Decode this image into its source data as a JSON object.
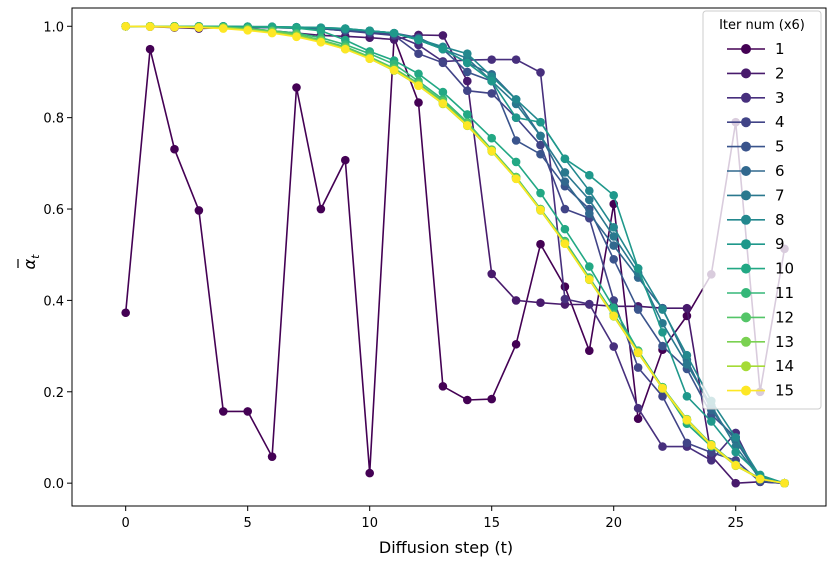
{
  "chart_data": {
    "type": "line",
    "title": "",
    "xlabel": "Diffusion step (t)",
    "ylabel": "ᾱ_t",
    "ylabel_base": "α",
    "ylabel_sub": "t",
    "xlim": [
      -2.2,
      28.7
    ],
    "ylim": [
      -0.05,
      1.04
    ],
    "xticks": [
      0,
      5,
      10,
      15,
      20,
      25
    ],
    "yticks": [
      0.0,
      0.2,
      0.4,
      0.6,
      0.8,
      1.0
    ],
    "legend_title": "Iter num (x6)",
    "legend_position": "top-right",
    "x": [
      0,
      1,
      2,
      3,
      4,
      5,
      6,
      7,
      8,
      9,
      10,
      11,
      12,
      13,
      14,
      15,
      16,
      17,
      18,
      19,
      20,
      21,
      22,
      23,
      24,
      25,
      26,
      27
    ],
    "series": [
      {
        "name": "1",
        "color": "#440154",
        "values": [
          0.373,
          0.95,
          0.731,
          0.597,
          0.157,
          0.157,
          0.058,
          0.866,
          0.6,
          0.707,
          0.022,
          0.975,
          0.833,
          0.212,
          0.182,
          0.184,
          0.304,
          0.523,
          0.43,
          0.29,
          0.611,
          0.141,
          0.292,
          0.366,
          0.457,
          0.79,
          0.2,
          0.513
        ]
      },
      {
        "name": "2",
        "color": "#481a6c",
        "values": [
          1.0,
          0.999,
          0.997,
          0.995,
          0.997,
          0.994,
          0.99,
          0.985,
          0.98,
          0.978,
          0.975,
          0.971,
          0.981,
          0.98,
          0.88,
          0.458,
          0.4,
          0.395,
          0.391,
          0.391,
          0.387,
          0.387,
          0.383,
          0.383,
          0.06,
          0.0,
          0.003,
          0.0
        ]
      },
      {
        "name": "3",
        "color": "#472f7d",
        "values": [
          1.0,
          1.0,
          0.999,
          0.998,
          0.998,
          0.997,
          0.997,
          0.996,
          0.995,
          0.99,
          0.988,
          0.981,
          0.959,
          0.923,
          0.926,
          0.927,
          0.927,
          0.899,
          0.403,
          0.392,
          0.299,
          0.164,
          0.08,
          0.08,
          0.05,
          0.11,
          0.003,
          0.0
        ]
      },
      {
        "name": "4",
        "color": "#414487",
        "values": [
          1.0,
          1.0,
          1.0,
          0.999,
          0.998,
          0.998,
          0.997,
          0.996,
          0.995,
          0.99,
          0.985,
          0.98,
          0.94,
          0.92,
          0.859,
          0.853,
          0.8,
          0.74,
          0.6,
          0.58,
          0.4,
          0.253,
          0.19,
          0.088,
          0.067,
          0.05,
          0.003,
          0.0
        ]
      },
      {
        "name": "5",
        "color": "#3a548c",
        "values": [
          1.0,
          1.0,
          1.0,
          0.999,
          0.999,
          0.998,
          0.997,
          0.996,
          0.995,
          0.992,
          0.988,
          0.985,
          0.975,
          0.95,
          0.9,
          0.88,
          0.75,
          0.72,
          0.65,
          0.6,
          0.49,
          0.38,
          0.3,
          0.25,
          0.15,
          0.1,
          0.005,
          0.0
        ]
      },
      {
        "name": "6",
        "color": "#31688e",
        "values": [
          1.0,
          1.0,
          1.0,
          1.0,
          0.999,
          0.999,
          0.998,
          0.997,
          0.996,
          0.993,
          0.99,
          0.985,
          0.97,
          0.95,
          0.92,
          0.895,
          0.84,
          0.76,
          0.66,
          0.59,
          0.52,
          0.45,
          0.383,
          0.27,
          0.16,
          0.093,
          0.01,
          0.0
        ]
      },
      {
        "name": "7",
        "color": "#2a788e",
        "values": [
          1.0,
          1.0,
          1.0,
          1.0,
          0.999,
          0.999,
          0.998,
          0.997,
          0.996,
          0.994,
          0.99,
          0.985,
          0.97,
          0.95,
          0.93,
          0.88,
          0.83,
          0.76,
          0.68,
          0.62,
          0.54,
          0.46,
          0.35,
          0.26,
          0.17,
          0.08,
          0.01,
          0.0
        ]
      },
      {
        "name": "8",
        "color": "#23888e",
        "values": [
          1.0,
          1.0,
          1.0,
          1.0,
          1.0,
          0.999,
          0.999,
          0.998,
          0.997,
          0.995,
          0.99,
          0.985,
          0.972,
          0.955,
          0.94,
          0.89,
          0.84,
          0.79,
          0.71,
          0.64,
          0.56,
          0.47,
          0.38,
          0.28,
          0.18,
          0.1,
          0.015,
          0.0
        ]
      },
      {
        "name": "9",
        "color": "#1f988b",
        "values": [
          1.0,
          1.0,
          1.0,
          1.0,
          1.0,
          0.999,
          0.999,
          0.998,
          0.997,
          0.995,
          0.99,
          0.985,
          0.97,
          0.95,
          0.92,
          0.88,
          0.8,
          0.79,
          0.71,
          0.674,
          0.63,
          0.47,
          0.33,
          0.19,
          0.135,
          0.068,
          0.018,
          0.0
        ]
      },
      {
        "name": "10",
        "color": "#22a884",
        "values": [
          1.0,
          1.0,
          1.0,
          1.0,
          1.0,
          0.999,
          0.998,
          0.996,
          0.99,
          0.97,
          0.945,
          0.925,
          0.896,
          0.856,
          0.807,
          0.755,
          0.703,
          0.635,
          0.556,
          0.474,
          0.384,
          0.29,
          0.21,
          0.13,
          0.08,
          0.04,
          0.01,
          0.0
        ]
      },
      {
        "name": "11",
        "color": "#35b779",
        "values": [
          1.0,
          1.0,
          1.0,
          0.999,
          0.998,
          0.995,
          0.99,
          0.985,
          0.975,
          0.96,
          0.94,
          0.917,
          0.88,
          0.84,
          0.79,
          0.73,
          0.67,
          0.6,
          0.53,
          0.45,
          0.37,
          0.29,
          0.21,
          0.14,
          0.085,
          0.04,
          0.01,
          0.0
        ]
      },
      {
        "name": "12",
        "color": "#54c568",
        "values": [
          1.0,
          1.0,
          1.0,
          0.999,
          0.998,
          0.995,
          0.99,
          0.983,
          0.97,
          0.955,
          0.933,
          0.908,
          0.875,
          0.836,
          0.788,
          0.73,
          0.67,
          0.6,
          0.528,
          0.448,
          0.368,
          0.288,
          0.21,
          0.14,
          0.085,
          0.04,
          0.01,
          0.0
        ]
      },
      {
        "name": "13",
        "color": "#7ad151",
        "values": [
          1.0,
          1.0,
          0.999,
          0.998,
          0.997,
          0.993,
          0.988,
          0.98,
          0.968,
          0.952,
          0.931,
          0.905,
          0.872,
          0.832,
          0.784,
          0.728,
          0.668,
          0.598,
          0.525,
          0.446,
          0.366,
          0.286,
          0.208,
          0.138,
          0.083,
          0.039,
          0.009,
          0.0
        ]
      },
      {
        "name": "14",
        "color": "#a5db36",
        "values": [
          1.0,
          1.0,
          0.999,
          0.998,
          0.996,
          0.992,
          0.986,
          0.978,
          0.966,
          0.95,
          0.929,
          0.903,
          0.87,
          0.83,
          0.782,
          0.726,
          0.666,
          0.597,
          0.524,
          0.445,
          0.365,
          0.285,
          0.207,
          0.137,
          0.082,
          0.038,
          0.009,
          0.0
        ]
      },
      {
        "name": "15",
        "color": "#fde725",
        "values": [
          1.0,
          0.999,
          0.998,
          0.997,
          0.995,
          0.991,
          0.985,
          0.977,
          0.965,
          0.95,
          0.929,
          0.904,
          0.87,
          0.831,
          0.783,
          0.727,
          0.666,
          0.598,
          0.524,
          0.446,
          0.366,
          0.286,
          0.208,
          0.139,
          0.083,
          0.039,
          0.009,
          0.0
        ]
      }
    ]
  }
}
